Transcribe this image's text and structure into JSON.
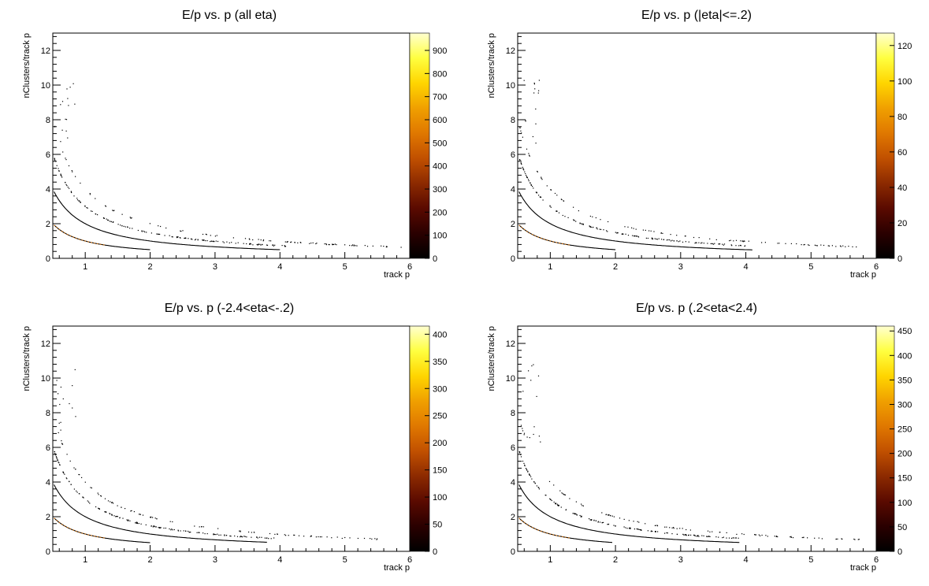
{
  "canvas": {
    "background": "#ffffff"
  },
  "colormap": [
    "#000000",
    "#2a0000",
    "#5a0a00",
    "#8c2a00",
    "#c15000",
    "#e07800",
    "#f0a000",
    "#ffd500",
    "#ffff40",
    "#ffffd0"
  ],
  "chart_data": [
    {
      "type": "heatmap",
      "title": "E/p vs. p (all eta)",
      "xlabel": "track p",
      "ylabel": "nClusters/track p",
      "xlim": [
        0.5,
        6
      ],
      "ylim": [
        0,
        13
      ],
      "x_ticks": [
        "1",
        "2",
        "3",
        "4",
        "5",
        "6"
      ],
      "y_ticks": [
        "0",
        "2",
        "4",
        "6",
        "8",
        "10",
        "12"
      ],
      "z_ticks": [
        "0",
        "100",
        "200",
        "300",
        "400",
        "500",
        "600",
        "700",
        "800",
        "900"
      ],
      "zlim": [
        0,
        975
      ],
      "grid": false,
      "bands": [
        {
          "n": 1,
          "p_max": 2.0,
          "counts": "high"
        },
        {
          "n": 2,
          "p_max": 4.0,
          "counts": "medium"
        },
        {
          "n": 3,
          "p_max": 4.1,
          "counts": "low"
        },
        {
          "n": 4,
          "p_max": 5.9,
          "counts": "very low"
        }
      ]
    },
    {
      "type": "heatmap",
      "title": "E/p vs. p (|eta|<=.2)",
      "xlabel": "track p",
      "ylabel": "nClusters/track p",
      "xlim": [
        0.5,
        6
      ],
      "ylim": [
        0,
        13
      ],
      "x_ticks": [
        "1",
        "2",
        "3",
        "4",
        "5",
        "6"
      ],
      "y_ticks": [
        "0",
        "2",
        "4",
        "6",
        "8",
        "10",
        "12"
      ],
      "z_ticks": [
        "0",
        "20",
        "40",
        "60",
        "80",
        "100",
        "120"
      ],
      "zlim": [
        0,
        127
      ],
      "grid": false,
      "bands": [
        {
          "n": 1,
          "p_max": 2.0,
          "counts": "high"
        },
        {
          "n": 2,
          "p_max": 4.1,
          "counts": "medium"
        },
        {
          "n": 3,
          "p_max": 4.0,
          "counts": "low"
        },
        {
          "n": 4,
          "p_max": 5.8,
          "counts": "very low"
        }
      ]
    },
    {
      "type": "heatmap",
      "title": "E/p vs. p (-2.4<eta<-.2)",
      "xlabel": "track p",
      "ylabel": "nClusters/track p",
      "xlim": [
        0.5,
        6
      ],
      "ylim": [
        0,
        13
      ],
      "x_ticks": [
        "1",
        "2",
        "3",
        "4",
        "5",
        "6"
      ],
      "y_ticks": [
        "0",
        "2",
        "4",
        "6",
        "8",
        "10",
        "12"
      ],
      "z_ticks": [
        "0",
        "50",
        "100",
        "150",
        "200",
        "250",
        "300",
        "350",
        "400"
      ],
      "zlim": [
        0,
        415
      ],
      "grid": false,
      "bands": [
        {
          "n": 1,
          "p_max": 2.0,
          "counts": "high"
        },
        {
          "n": 2,
          "p_max": 3.8,
          "counts": "medium"
        },
        {
          "n": 3,
          "p_max": 3.9,
          "counts": "low"
        },
        {
          "n": 4,
          "p_max": 5.6,
          "counts": "very low"
        }
      ]
    },
    {
      "type": "heatmap",
      "title": "E/p vs. p (.2<eta<2.4)",
      "xlabel": "track p",
      "ylabel": "nClusters/track p",
      "xlim": [
        0.5,
        6
      ],
      "ylim": [
        0,
        13
      ],
      "x_ticks": [
        "1",
        "2",
        "3",
        "4",
        "5",
        "6"
      ],
      "y_ticks": [
        "0",
        "2",
        "4",
        "6",
        "8",
        "10",
        "12"
      ],
      "z_ticks": [
        "0",
        "50",
        "100",
        "150",
        "200",
        "250",
        "300",
        "350",
        "400",
        "450"
      ],
      "zlim": [
        0,
        460
      ],
      "grid": false,
      "bands": [
        {
          "n": 1,
          "p_max": 1.95,
          "counts": "high"
        },
        {
          "n": 2,
          "p_max": 3.9,
          "counts": "medium"
        },
        {
          "n": 3,
          "p_max": 3.9,
          "counts": "low"
        },
        {
          "n": 4,
          "p_max": 5.8,
          "counts": "very low"
        }
      ]
    }
  ]
}
